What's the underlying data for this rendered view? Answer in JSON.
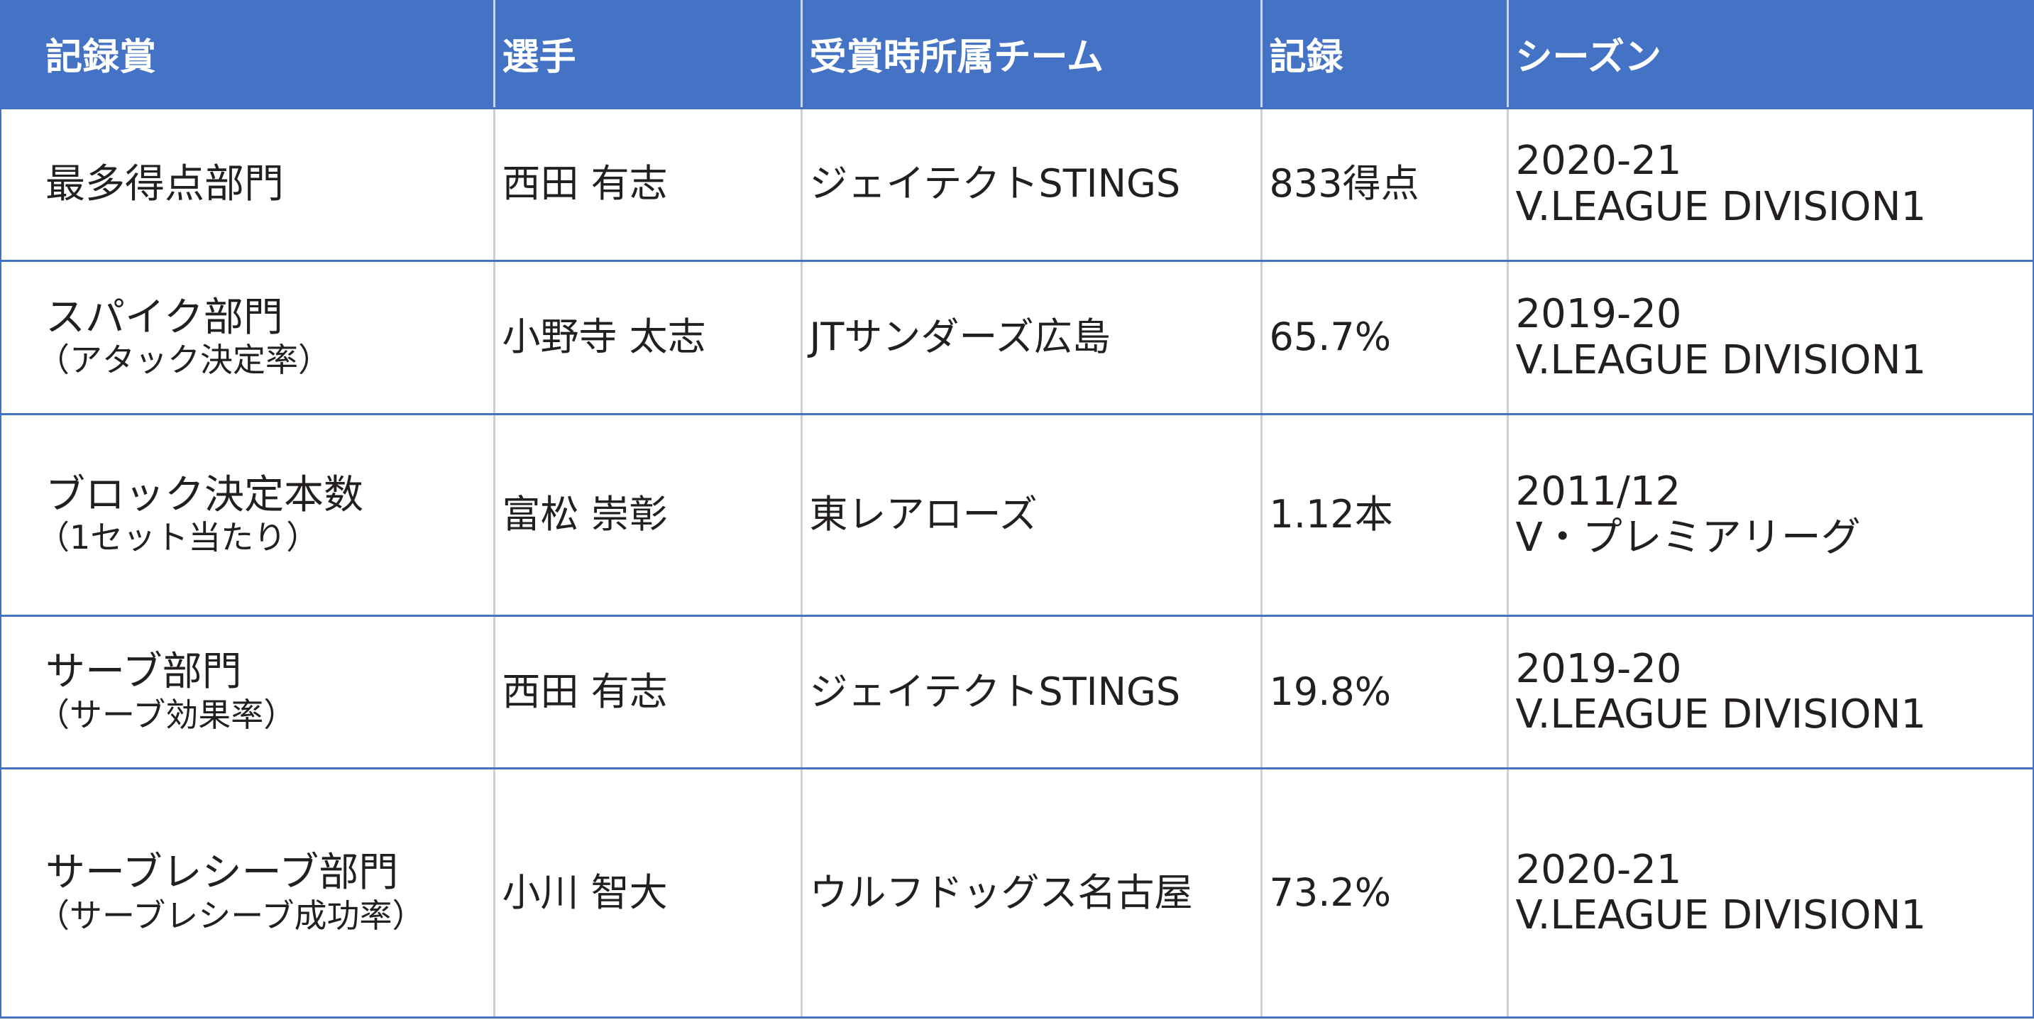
{
  "header": {
    "award": "記録賞",
    "player": "選手",
    "team": "受賞時所属チーム",
    "record": "記録",
    "season": "シーズン"
  },
  "rows": [
    {
      "award": "最多得点部門",
      "award_note": "",
      "player": "西田 有志",
      "team": "ジェイテクトSTINGS",
      "record": "833得点",
      "season_year": "2020-21",
      "season_league": "V.LEAGUE DIVISION1"
    },
    {
      "award": "スパイク部門",
      "award_note": "（アタック決定率）",
      "player": "小野寺 太志",
      "team": "JTサンダーズ広島",
      "record": "65.7%",
      "season_year": "2019-20",
      "season_league": "V.LEAGUE DIVISION1"
    },
    {
      "award": "ブロック決定本数",
      "award_note": "（1セット当たり）",
      "player": "富松 崇彰",
      "team": "東レアローズ",
      "record": "1.12本",
      "season_year": "2011/12",
      "season_league": "V・プレミアリーグ"
    },
    {
      "award": "サーブ部門",
      "award_note": "（サーブ効果率）",
      "player": "西田 有志",
      "team": "ジェイテクトSTINGS",
      "record": "19.8%",
      "season_year": "2019-20",
      "season_league": "V.LEAGUE DIVISION1"
    },
    {
      "award": "サーブレシーブ部門",
      "award_note": "（サーブレシーブ成功率）",
      "player": "小川 智大",
      "team": "ウルフドッグス名古屋",
      "record": "73.2%",
      "season_year": "2020-21",
      "season_league": "V.LEAGUE DIVISION1"
    }
  ],
  "colors": {
    "header_bg": "#4472c4",
    "header_text": "#ffffff",
    "row_border": "#4472c4",
    "column_divider": "#cfcfcf",
    "body_text": "#231f20"
  }
}
